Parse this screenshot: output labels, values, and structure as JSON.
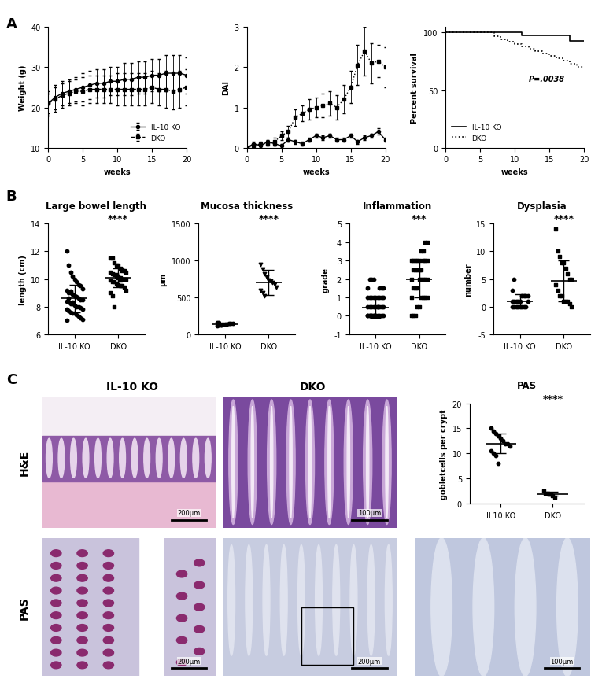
{
  "panel_labels": [
    "A",
    "B",
    "C"
  ],
  "chart_data": [
    {
      "type": "line",
      "ylabel": "Weight (g)",
      "xlabel": "weeks",
      "x": [
        0,
        1,
        2,
        3,
        4,
        5,
        6,
        7,
        8,
        9,
        10,
        11,
        12,
        13,
        14,
        15,
        16,
        17,
        18,
        19,
        20
      ],
      "xlim": [
        0,
        20
      ],
      "xticks": [
        0,
        5,
        10,
        15,
        20
      ],
      "ylim": [
        10,
        40
      ],
      "yticks": [
        10,
        20,
        30,
        40
      ],
      "legend": "lower right",
      "series": [
        {
          "name": "IL-10 KO",
          "color": "#000000",
          "marker": "circle",
          "line_style": "solid",
          "values": [
            21,
            22.5,
            23.5,
            24,
            24.5,
            25,
            25.5,
            26,
            26,
            26.5,
            26.5,
            27,
            27,
            27.5,
            27.5,
            28,
            28,
            28.5,
            28.5,
            28.5,
            28
          ],
          "error": [
            3,
            3,
            3,
            3,
            3,
            3.5,
            3.5,
            3.5,
            3.5,
            3.5,
            3.5,
            4,
            4,
            4,
            4,
            4,
            4,
            4.5,
            4.5,
            4.5,
            4.5
          ]
        },
        {
          "name": "DKO",
          "color": "#000000",
          "marker": "square",
          "line_style": "dashed",
          "values": [
            21,
            22,
            23,
            23.5,
            24,
            24,
            24.5,
            24.5,
            24.5,
            24.5,
            24.5,
            24.5,
            24.5,
            24.5,
            24.5,
            25,
            24.5,
            24.5,
            24,
            24.5,
            25
          ],
          "error": [
            2.5,
            3,
            3,
            3,
            3,
            3.5,
            3.5,
            3.5,
            3.5,
            3.5,
            4,
            4,
            4,
            4,
            4,
            4,
            4,
            4.5,
            4.5,
            4.5,
            4.5
          ]
        }
      ]
    },
    {
      "type": "line",
      "ylabel": "DAI",
      "xlabel": "weeks",
      "x": [
        0,
        1,
        2,
        3,
        4,
        5,
        6,
        7,
        8,
        9,
        10,
        11,
        12,
        13,
        14,
        15,
        16,
        17,
        18,
        19,
        20
      ],
      "xlim": [
        0,
        20
      ],
      "xticks": [
        0,
        5,
        10,
        15,
        20
      ],
      "ylim": [
        0,
        3
      ],
      "yticks": [
        0,
        1,
        2,
        3
      ],
      "series": [
        {
          "name": "IL-10 KO",
          "color": "#000000",
          "marker": "circle",
          "line_style": "solid",
          "values": [
            0,
            0.1,
            0.05,
            0.15,
            0.1,
            0.05,
            0.2,
            0.15,
            0.1,
            0.2,
            0.3,
            0.25,
            0.3,
            0.2,
            0.2,
            0.3,
            0.15,
            0.25,
            0.3,
            0.4,
            0.2
          ],
          "error": [
            0,
            0.05,
            0.05,
            0.05,
            0.05,
            0.05,
            0.05,
            0.05,
            0.05,
            0.05,
            0.05,
            0.05,
            0.05,
            0.05,
            0.05,
            0.05,
            0.05,
            0.05,
            0.05,
            0.08,
            0.05
          ]
        },
        {
          "name": "DKO",
          "color": "#000000",
          "marker": "square",
          "line_style": "dotted",
          "values": [
            0,
            0.05,
            0.1,
            0.1,
            0.15,
            0.3,
            0.4,
            0.75,
            0.85,
            0.95,
            1.0,
            1.05,
            1.1,
            1.0,
            1.2,
            1.5,
            2.05,
            2.4,
            2.1,
            2.15,
            2.0
          ],
          "error": [
            0,
            0.05,
            0.05,
            0.05,
            0.1,
            0.1,
            0.15,
            0.2,
            0.2,
            0.25,
            0.25,
            0.3,
            0.3,
            0.3,
            0.35,
            0.4,
            0.5,
            0.6,
            0.5,
            0.4,
            0.5
          ]
        }
      ]
    },
    {
      "type": "step",
      "ylabel": "Percent survival",
      "xlabel": "weeks",
      "xlim": [
        0,
        20
      ],
      "xticks": [
        0,
        5,
        10,
        15,
        20
      ],
      "ylim": [
        0,
        105
      ],
      "yticks": [
        0,
        50,
        100
      ],
      "legend": "lower left",
      "annotations": [
        {
          "text": "P=.0038",
          "x": 12,
          "y": 58
        }
      ],
      "series": [
        {
          "name": "IL-10 KO",
          "color": "#000000",
          "line_style": "solid",
          "x": [
            0,
            11,
            18,
            20
          ],
          "values": [
            100,
            97.5,
            93,
            93
          ]
        },
        {
          "name": "DKO",
          "color": "#000000",
          "line_style": "dotted",
          "x": [
            0,
            7,
            8,
            9,
            10,
            11,
            12,
            13,
            14,
            15,
            16,
            17,
            18,
            19,
            20
          ],
          "values": [
            100,
            97,
            94,
            92,
            90,
            88,
            86,
            84,
            82,
            80,
            78,
            76,
            73,
            70,
            70
          ]
        }
      ]
    },
    {
      "type": "dot",
      "title": "Large bowel length",
      "ylabel": "length (cm)",
      "categories": [
        "IL-10 KO",
        "DKO"
      ],
      "ylim": [
        6,
        14
      ],
      "yticks": [
        6,
        8,
        10,
        12,
        14
      ],
      "annotations": [
        {
          "text": "****",
          "category": "DKO"
        }
      ],
      "groups": [
        {
          "marker": "circle",
          "color": "#000000",
          "mean": 8.6,
          "sd": 1.0,
          "values": [
            12.0,
            11.0,
            10.5,
            10.2,
            10.0,
            9.8,
            9.6,
            9.5,
            9.3,
            9.2,
            9.0,
            9.0,
            8.9,
            8.8,
            8.7,
            8.6,
            8.5,
            8.5,
            8.4,
            8.3,
            8.2,
            8.2,
            8.1,
            8.0,
            8.0,
            7.9,
            7.8,
            7.8,
            7.7,
            7.6,
            7.5,
            7.5,
            7.4,
            7.3,
            7.2,
            7.1,
            7.0,
            8.6,
            9.1,
            8.3
          ]
        },
        {
          "marker": "square",
          "color": "#000000",
          "mean": 10.1,
          "sd": 0.7,
          "values": [
            11.5,
            11.5,
            11.2,
            11.0,
            11.0,
            10.8,
            10.7,
            10.6,
            10.5,
            10.5,
            10.4,
            10.3,
            10.2,
            10.2,
            10.1,
            10.0,
            10.0,
            10.0,
            9.9,
            9.8,
            9.8,
            9.7,
            9.6,
            9.5,
            9.5,
            9.4,
            9.2,
            9.0,
            8.8,
            8.0,
            10.3,
            10.1,
            9.9,
            10.6
          ]
        }
      ]
    },
    {
      "type": "dot",
      "title": "Mucosa thickness",
      "ylabel": "µm",
      "categories": [
        "IL-10 KO",
        "DKO"
      ],
      "ylim": [
        0,
        1500
      ],
      "yticks": [
        0,
        500,
        1000,
        1500
      ],
      "annotations": [
        {
          "text": "****",
          "category": "DKO"
        }
      ],
      "groups": [
        {
          "marker": "circle",
          "color": "#000000",
          "mean": 140,
          "sd": 12,
          "values": [
            120,
            125,
            130,
            135,
            140,
            140,
            145,
            150,
            150,
            155,
            160,
            130
          ]
        },
        {
          "marker": "triangle_down",
          "color": "#000000",
          "mean": 700,
          "sd": 170,
          "values": [
            950,
            880,
            820,
            780,
            740,
            720,
            700,
            680,
            640,
            600,
            560,
            520
          ]
        }
      ]
    },
    {
      "type": "dot",
      "title": "Inflammation",
      "ylabel": "grade",
      "categories": [
        "IL-10 KO",
        "DKO"
      ],
      "ylim": [
        -1,
        5
      ],
      "yticks": [
        -1,
        0,
        1,
        2,
        3,
        4,
        5
      ],
      "annotations": [
        {
          "text": "***",
          "category": "DKO"
        }
      ],
      "groups": [
        {
          "marker": "circle",
          "color": "#000000",
          "mean": 0.45,
          "sd": 0.55,
          "values": [
            0,
            0,
            0,
            0,
            0,
            0,
            0,
            0,
            0,
            0,
            0,
            0,
            0,
            0,
            0.5,
            0.5,
            0.5,
            0.5,
            0.5,
            0.5,
            0.5,
            0.5,
            0.5,
            0.5,
            1,
            1,
            1,
            1,
            1,
            1,
            1,
            1,
            1,
            1.5,
            1.5,
            1.5,
            1.5,
            2,
            2,
            2
          ]
        },
        {
          "marker": "square",
          "color": "#000000",
          "mean": 2.0,
          "sd": 1.0,
          "values": [
            0,
            0,
            0,
            0.5,
            0.5,
            1,
            1,
            1,
            1,
            1,
            1.5,
            1.5,
            1.5,
            2,
            2,
            2,
            2,
            2,
            2,
            2.5,
            2.5,
            2.5,
            2.5,
            2.5,
            3,
            3,
            3,
            3,
            3,
            3,
            3,
            3,
            3.5,
            3.5,
            4,
            4
          ]
        }
      ]
    },
    {
      "type": "dot",
      "title": "Dysplasia",
      "ylabel": "number",
      "categories": [
        "IL-10 KO",
        "DKO"
      ],
      "ylim": [
        -5,
        15
      ],
      "yticks": [
        -5,
        0,
        5,
        10,
        15
      ],
      "annotations": [
        {
          "text": "****",
          "category": "DKO"
        }
      ],
      "groups": [
        {
          "marker": "circle",
          "color": "#000000",
          "mean": 1.0,
          "sd": 1.2,
          "values": [
            0,
            0,
            0,
            0,
            0,
            0,
            0,
            0,
            1,
            1,
            1,
            1,
            1,
            1,
            2,
            2,
            2,
            2,
            3,
            5
          ]
        },
        {
          "marker": "square",
          "color": "#000000",
          "mean": 4.6,
          "sd": 3.7,
          "values": [
            14,
            10,
            9,
            8,
            8,
            7,
            6,
            5,
            5,
            4,
            3,
            2,
            2,
            1,
            1,
            1,
            0.5,
            0
          ]
        }
      ]
    },
    {
      "type": "dot",
      "title": "PAS",
      "ylabel": "gobletcells per crypt",
      "categories": [
        "IL10 KO",
        "DKO"
      ],
      "ylim": [
        0,
        20
      ],
      "yticks": [
        0,
        5,
        10,
        15,
        20
      ],
      "annotations": [
        {
          "text": "****",
          "category": "DKO"
        }
      ],
      "groups": [
        {
          "marker": "circle",
          "color": "#000000",
          "mean": 12,
          "sd": 2,
          "values": [
            15,
            14.5,
            14,
            13.5,
            13,
            12.5,
            12,
            12,
            11.5,
            10.5,
            10,
            9.5,
            8
          ]
        },
        {
          "marker": "square",
          "color": "#000000",
          "mean": 1.9,
          "sd": 0.4,
          "values": [
            2.5,
            2,
            2,
            1.8,
            1.5,
            1.2
          ]
        }
      ]
    }
  ],
  "images": {
    "columns": [
      "IL-10 KO",
      "DKO"
    ],
    "rows": [
      "H&E",
      "PAS"
    ],
    "scale_bars": {
      "H&E": [
        "200µm",
        "100µm"
      ],
      "PAS": [
        "200µm",
        "200µm",
        "100µm"
      ]
    }
  }
}
